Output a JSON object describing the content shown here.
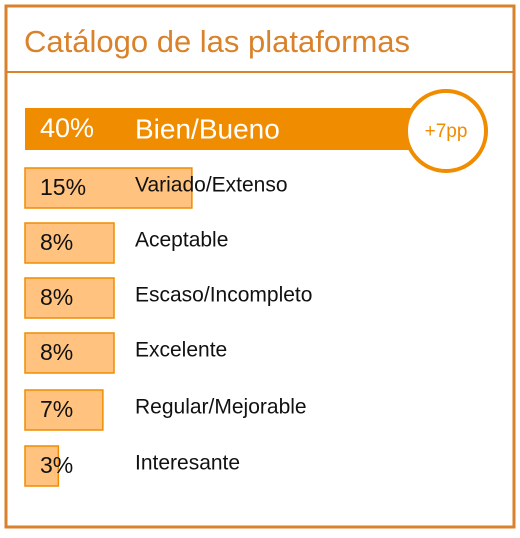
{
  "chart_data": {
    "type": "bar",
    "orientation": "horizontal",
    "title": "Catálogo de las plataformas",
    "categories": [
      "Bien/Bueno",
      "Variado/Extenso",
      "Aceptable",
      "Escaso/Incompleto",
      "Excelente",
      "Regular/Mejorable",
      "Interesante"
    ],
    "values": [
      40,
      15,
      8,
      8,
      8,
      7,
      3
    ],
    "value_labels": [
      "40%",
      "15%",
      "8%",
      "8%",
      "8%",
      "7%",
      "3%"
    ],
    "colors": [
      "#f08c00",
      "#ffc27f",
      "#ffc27f",
      "#ffc27f",
      "#ffc27f",
      "#ffc27f",
      "#ffc27f"
    ],
    "annotation": "+7pp",
    "xlim": [
      0,
      40
    ]
  }
}
